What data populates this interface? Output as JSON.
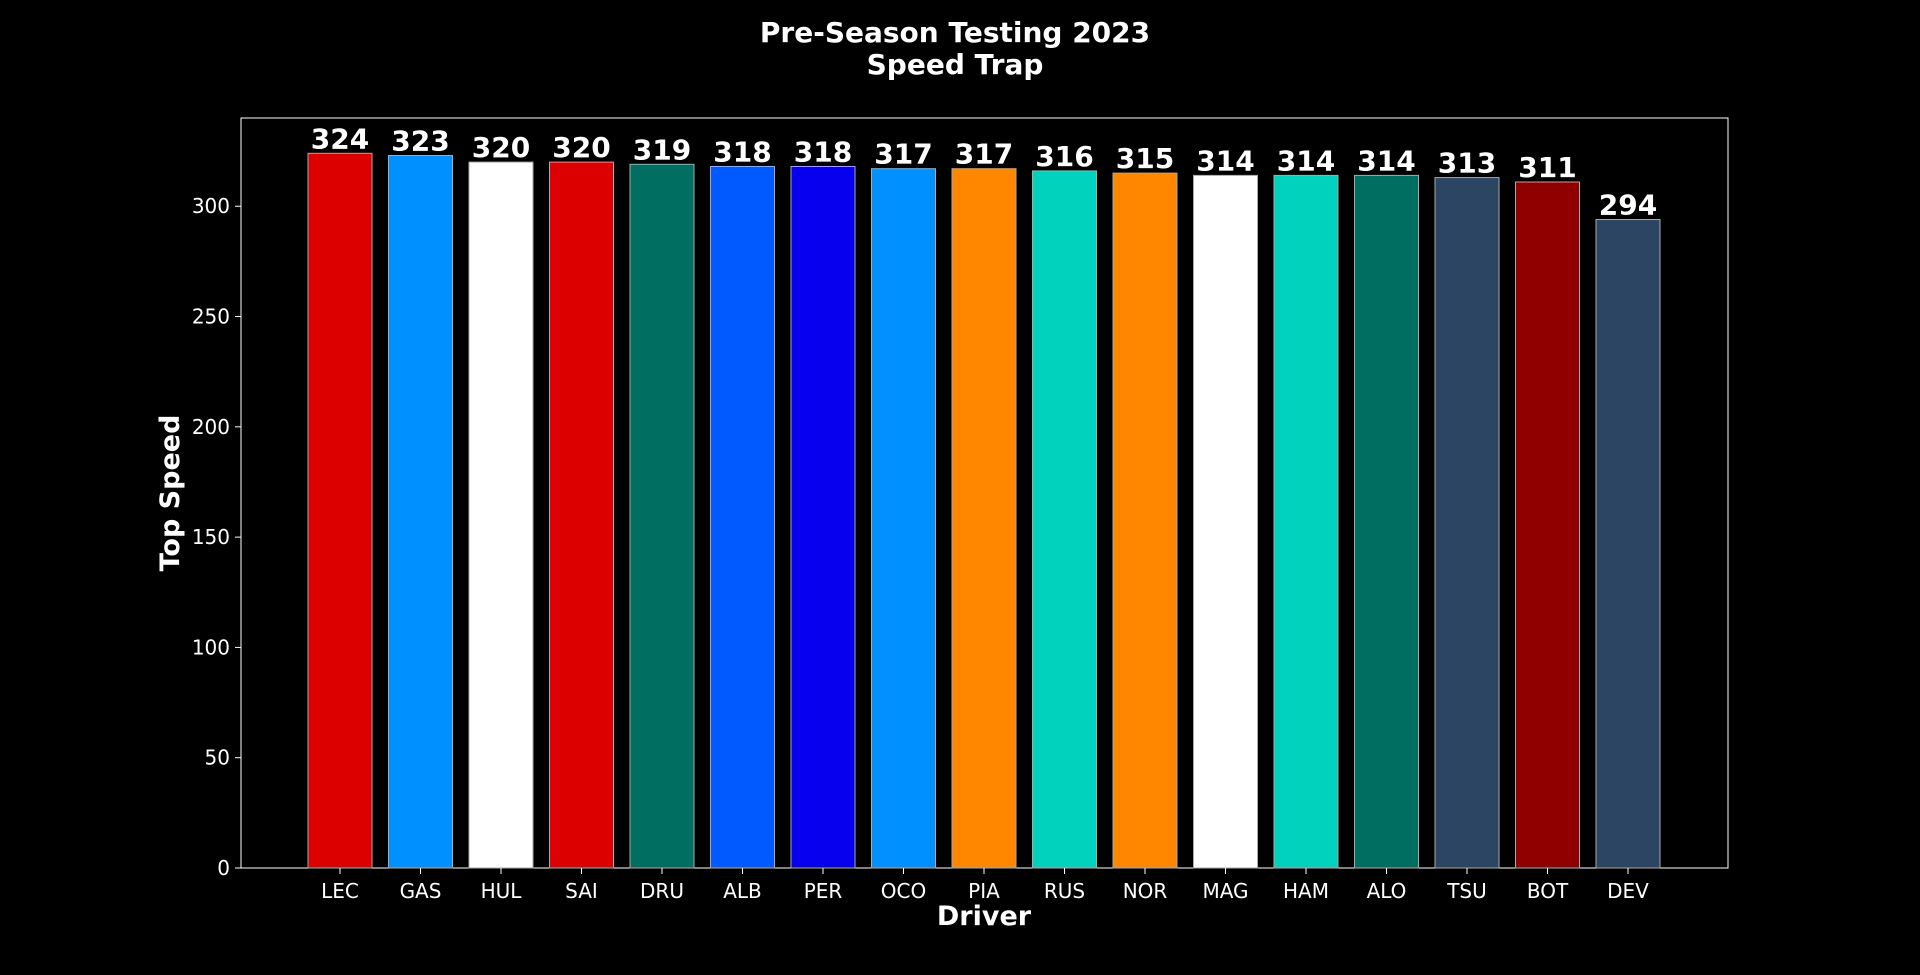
{
  "chart_data": {
    "type": "bar",
    "title": "Pre-Season Testing 2023",
    "subtitle": "Speed Trap",
    "xlabel": "Driver",
    "ylabel": "Top Speed",
    "categories": [
      "LEC",
      "GAS",
      "HUL",
      "SAI",
      "DRU",
      "ALB",
      "PER",
      "OCO",
      "PIA",
      "RUS",
      "NOR",
      "MAG",
      "HAM",
      "ALO",
      "TSU",
      "BOT",
      "DEV"
    ],
    "values": [
      324,
      323,
      320,
      320,
      319,
      318,
      318,
      317,
      317,
      316,
      315,
      314,
      314,
      314,
      313,
      311,
      294
    ],
    "value_labels": [
      "324",
      "323",
      "320",
      "320",
      "319",
      "318",
      "318",
      "317",
      "317",
      "316",
      "315",
      "314",
      "314",
      "314",
      "313",
      "311",
      "294"
    ],
    "colors": [
      "#dc0000",
      "#0090ff",
      "#ffffff",
      "#dc0000",
      "#006f62",
      "#005aff",
      "#0600ef",
      "#0090ff",
      "#ff8700",
      "#00d2be",
      "#ff8700",
      "#ffffff",
      "#00d2be",
      "#006f62",
      "#2b4562",
      "#900000",
      "#2b4562"
    ],
    "yticks": [
      0,
      50,
      100,
      150,
      200,
      250,
      300
    ],
    "ytick_labels": [
      "0",
      "50",
      "100",
      "150",
      "200",
      "250",
      "300"
    ],
    "ylim": [
      0,
      340
    ],
    "grid": false,
    "background": "#000000",
    "foreground": "#ffffff",
    "bar_edge_color": "#aaaaaa"
  }
}
